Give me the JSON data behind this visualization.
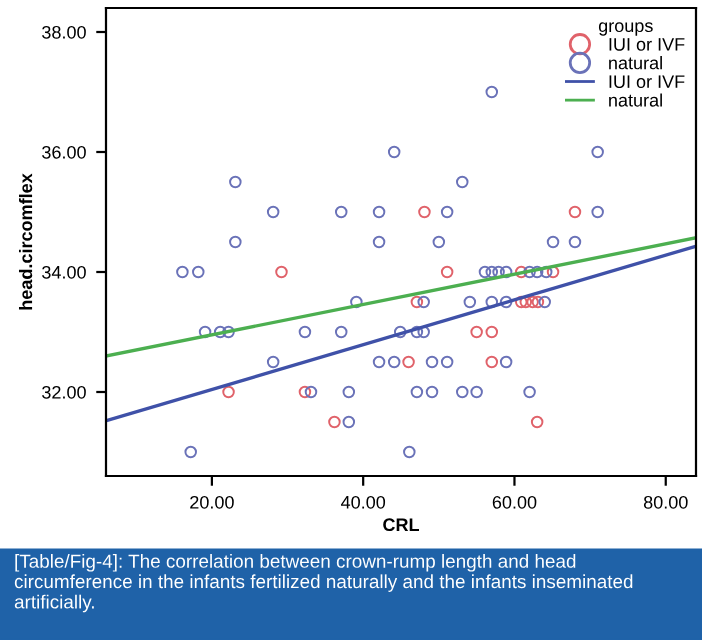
{
  "chart_data": {
    "type": "scatter",
    "xlabel": "CRL",
    "ylabel": "head.circomflex",
    "legend_title": "groups",
    "legend": "top right",
    "grid": false,
    "xlim": [
      6,
      84
    ],
    "ylim": [
      30.6,
      38.4
    ],
    "xticks": [
      {
        "value": 20,
        "label": "20.00"
      },
      {
        "value": 40,
        "label": "40.00"
      },
      {
        "value": 60,
        "label": "60.00"
      },
      {
        "value": 80,
        "label": "80.00"
      }
    ],
    "yticks": [
      {
        "value": 32,
        "label": "32.00"
      },
      {
        "value": 34,
        "label": "34.00"
      },
      {
        "value": 36,
        "label": "36.00"
      },
      {
        "value": 38,
        "label": "38.00"
      }
    ],
    "series": [
      {
        "name": "IUI or IVF",
        "marker": "circle",
        "color": "#e0626a",
        "x": [
          29.2,
          48.1,
          68.0,
          51.1,
          60.9,
          65.1,
          47.1,
          60.9,
          61.5,
          62.4,
          63.1,
          55.0,
          57.0,
          46.0,
          57.0,
          22.2,
          32.3,
          36.2,
          63.0
        ],
        "values": [
          34.0,
          35.0,
          35.0,
          34.0,
          34.0,
          34.0,
          33.5,
          33.5,
          33.5,
          33.5,
          33.5,
          33.0,
          33.0,
          32.5,
          32.5,
          32.0,
          32.0,
          31.5,
          31.5
        ]
      },
      {
        "name": "natural",
        "marker": "circle",
        "color": "#6a72b8",
        "x": [
          23.1,
          28.1,
          37.1,
          23.1,
          16.1,
          18.2,
          57.0,
          44.1,
          71.0,
          53.1,
          42.1,
          51.1,
          71.0,
          42.1,
          50.0,
          65.1,
          68.0,
          56.1,
          57.0,
          57.9,
          58.9,
          62.0,
          63.0,
          64.2,
          39.1,
          48.0,
          54.1,
          57.0,
          58.9,
          64.0,
          19.1,
          21.1,
          22.2,
          32.3,
          37.1,
          44.9,
          47.1,
          48.0,
          28.1,
          42.1,
          44.1,
          49.1,
          51.1,
          58.9,
          33.1,
          38.1,
          47.1,
          49.1,
          53.1,
          55.0,
          62.0,
          38.1,
          17.2,
          46.1
        ],
        "values": [
          35.5,
          35.0,
          35.0,
          34.5,
          34.0,
          34.0,
          37.0,
          36.0,
          36.0,
          35.5,
          35.0,
          35.0,
          35.0,
          34.5,
          34.5,
          34.5,
          34.5,
          34.0,
          34.0,
          34.0,
          34.0,
          34.0,
          34.0,
          34.0,
          33.5,
          33.5,
          33.5,
          33.5,
          33.5,
          33.5,
          33.0,
          33.0,
          33.0,
          33.0,
          33.0,
          33.0,
          33.0,
          33.0,
          32.5,
          32.5,
          32.5,
          32.5,
          32.5,
          32.5,
          32.0,
          32.0,
          32.0,
          32.0,
          32.0,
          32.0,
          32.0,
          31.5,
          31.0,
          31.0
        ]
      },
      {
        "name": "IUI or IVF",
        "type": "line",
        "color": "#3f51a8",
        "x": [
          6,
          84
        ],
        "values": [
          31.52,
          34.43
        ]
      },
      {
        "name": "natural",
        "type": "line",
        "color": "#4caf50",
        "x": [
          6,
          84
        ],
        "values": [
          32.6,
          34.57
        ]
      }
    ],
    "annotations": [
      "[Table/Fig-4]: The correlation between crown-rump length and head circumference in the infants fertilized naturally and the infants inseminated artificially."
    ]
  }
}
